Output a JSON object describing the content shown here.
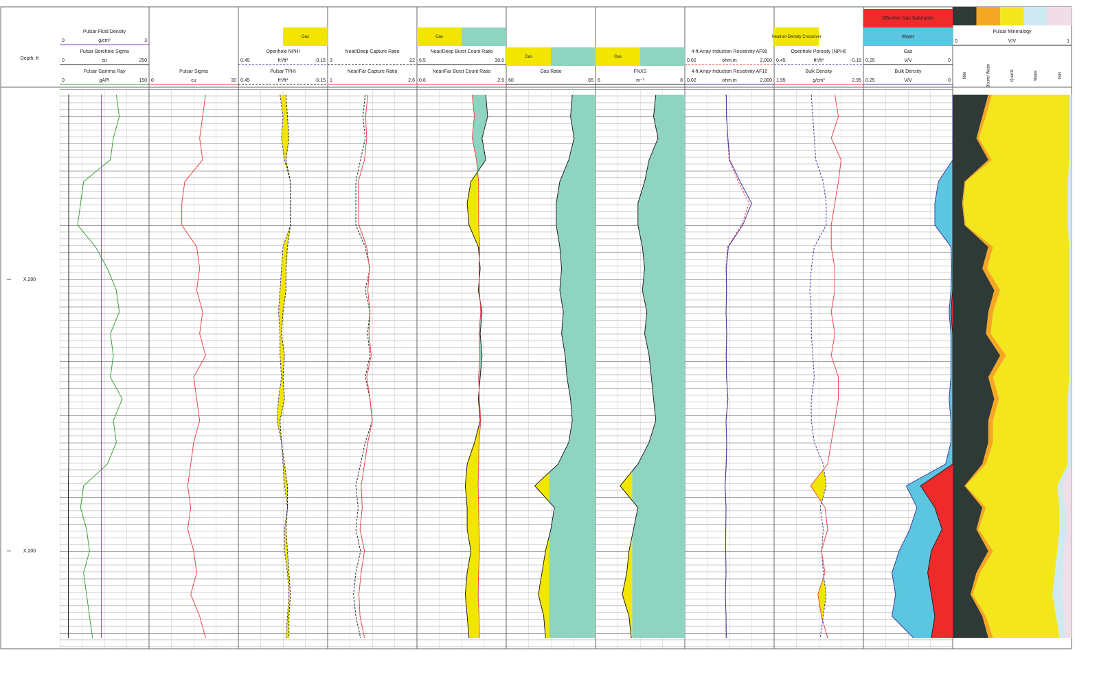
{
  "depth": {
    "title": "Depth, ft",
    "range": [
      130,
      336
    ],
    "ticks": [
      {
        "value": 200,
        "label": "X,200"
      },
      {
        "value": 300,
        "label": "X,300"
      }
    ],
    "samples": [
      132,
      140,
      148,
      156,
      164,
      172,
      180,
      188,
      196,
      204,
      212,
      220,
      228,
      236,
      244,
      252,
      260,
      268,
      276,
      284,
      292,
      300,
      308,
      316,
      324,
      332
    ]
  },
  "tracks": [
    {
      "fill": "none",
      "curves": [
        {
          "name": "Pulsar Fluid Density",
          "unit": "g/cm³",
          "scale": [
            0,
            3
          ],
          "color": "#8a3fb5",
          "values": [
            1.4,
            1.4,
            1.4,
            1.4,
            1.4,
            1.4,
            1.4,
            1.4,
            1.4,
            1.4,
            1.4,
            1.4,
            1.4,
            1.4,
            1.4,
            1.4,
            1.4,
            1.4,
            1.4,
            1.4,
            1.4,
            1.4,
            1.4,
            1.4,
            1.4,
            1.4
          ]
        },
        {
          "name": "Pulsar Borehole Sigma",
          "unit": "cu",
          "scale": [
            0,
            250
          ],
          "color": "#222222",
          "values": [
            25,
            25,
            25,
            25,
            25,
            25,
            25,
            25,
            25,
            25,
            25,
            25,
            25,
            25,
            25,
            25,
            25,
            25,
            24,
            24,
            24,
            24,
            24,
            24,
            24,
            24
          ]
        },
        {
          "name": "Pulsar Gamma Ray",
          "unit": "gAPI",
          "scale": [
            0,
            150
          ],
          "color": "#3aa03a",
          "values": [
            95,
            100,
            90,
            85,
            40,
            35,
            30,
            60,
            80,
            95,
            100,
            85,
            90,
            85,
            105,
            90,
            95,
            80,
            40,
            35,
            45,
            50,
            40,
            45,
            50,
            55
          ]
        }
      ]
    },
    {
      "fill": "none",
      "curves": [
        {
          "name": "Pulsar Sigma",
          "unit": "cu",
          "scale": [
            0,
            30
          ],
          "color": "#e8474b",
          "values": [
            19,
            18,
            17,
            18,
            12,
            11,
            11,
            16,
            17,
            16,
            18,
            17,
            19,
            15,
            16,
            17,
            15,
            14,
            13,
            14,
            13,
            15,
            16,
            14,
            17,
            19
          ]
        }
      ]
    },
    {
      "fill": "crossover",
      "fill_colors": [
        "#f2e600"
      ],
      "legend_position": "right",
      "legend": [
        {
          "label": "Gas",
          "color": "#f2e600"
        }
      ],
      "curves": [
        {
          "name": "Openhole NPHI",
          "unit": "ft³/ft³",
          "scale": [
            0.45,
            -0.15
          ],
          "color": "#3b3b9e",
          "dashed": true,
          "values": [
            0.17,
            0.15,
            0.16,
            0.14,
            0.1,
            0.1,
            0.1,
            0.15,
            0.16,
            0.17,
            0.18,
            0.17,
            0.17,
            0.16,
            0.18,
            0.19,
            0.16,
            0.15,
            0.14,
            0.12,
            0.14,
            0.14,
            0.12,
            0.11,
            0.12,
            0.13
          ]
        },
        {
          "name": "Pulsar TPHI",
          "unit": "ft³/ft³",
          "scale": [
            0.45,
            -0.15
          ],
          "color": "#222222",
          "dashed": true,
          "values": [
            0.13,
            0.12,
            0.11,
            0.13,
            0.1,
            0.1,
            0.1,
            0.12,
            0.13,
            0.13,
            0.15,
            0.16,
            0.14,
            0.15,
            0.14,
            0.17,
            0.16,
            0.14,
            0.12,
            0.12,
            0.13,
            0.12,
            0.11,
            0.1,
            0.11,
            0.11
          ]
        }
      ]
    },
    {
      "fill": "none",
      "curves": [
        {
          "name": "Near/Deep Capture Ratio",
          "unit": null,
          "scale": [
            3,
            22
          ],
          "color": "#222222",
          "dashed": true,
          "values": [
            11,
            10.5,
            11,
            10,
            9,
            9,
            9,
            11,
            12,
            11,
            12,
            11.5,
            12,
            11,
            12,
            12.5,
            11,
            10,
            9,
            9.5,
            9,
            10,
            9,
            8.5,
            9,
            10
          ]
        },
        {
          "name": "Near/Far Capture Ratio",
          "unit": null,
          "scale": [
            1,
            2.6
          ],
          "color": "#e8474b",
          "values": [
            1.72,
            1.68,
            1.7,
            1.66,
            1.55,
            1.55,
            1.56,
            1.7,
            1.75,
            1.72,
            1.76,
            1.74,
            1.78,
            1.7,
            1.76,
            1.8,
            1.72,
            1.66,
            1.6,
            1.62,
            1.58,
            1.66,
            1.6,
            1.56,
            1.58,
            1.66
          ]
        }
      ]
    },
    {
      "fill": "crossover",
      "fill_colors": [
        "#f2e600",
        "#8fd3c1"
      ],
      "legend_position": "left",
      "legend": [
        {
          "label": "Gas",
          "color": "#f2e600"
        },
        {
          "color": "#8fd3c1"
        }
      ],
      "curves": [
        {
          "name": "Near/Deep Burst Count Ratio",
          "unit": null,
          "scale": [
            6.5,
            30.5
          ],
          "color": "#222222",
          "values": [
            25,
            25.5,
            24,
            25,
            21,
            20,
            20.5,
            23,
            23.5,
            23,
            24,
            23.5,
            24,
            23.5,
            23,
            23.5,
            22,
            20,
            19.5,
            20,
            20,
            21,
            20,
            19.5,
            20,
            20.5
          ]
        },
        {
          "name": "Near/Far Burst Count Ratio",
          "unit": null,
          "scale": [
            0.8,
            2.9
          ],
          "color": "#e8474b",
          "values": [
            2.1,
            2.15,
            2.1,
            2.2,
            2.25,
            2.25,
            2.25,
            2.28,
            2.26,
            2.27,
            2.3,
            2.26,
            2.28,
            2.25,
            2.27,
            2.3,
            2.26,
            2.25,
            2.24,
            2.25,
            2.26,
            2.27,
            2.25,
            2.24,
            2.26,
            2.27
          ]
        }
      ]
    },
    {
      "fill": "cutoff",
      "cutoff": 62.4,
      "fill_colors": [
        "#f2e600",
        "#8fd3c1"
      ],
      "legend_position": "left",
      "legend": [
        {
          "label": "Gas",
          "color": "#f2e600"
        },
        {
          "color": "#8fd3c1"
        }
      ],
      "curves": [
        {
          "name": "Gas Ratio",
          "unit": null,
          "scale": [
            60,
            65
          ],
          "color": "#222222",
          "values": [
            63.7,
            63.6,
            63.8,
            63.5,
            63.0,
            62.8,
            62.8,
            63.0,
            63.1,
            63.0,
            63.2,
            63.1,
            63.3,
            63.4,
            63.6,
            63.7,
            63.5,
            62.9,
            61.6,
            62.7,
            62.5,
            62.2,
            62.0,
            61.8,
            62.1,
            62.2
          ]
        }
      ]
    },
    {
      "fill": "cutoff",
      "cutoff": 6.82,
      "fill_colors": [
        "#f2e600",
        "#8fd3c1"
      ],
      "legend_position": "left",
      "legend": [
        {
          "label": "Gas",
          "color": "#f2e600"
        },
        {
          "color": "#8fd3c1"
        }
      ],
      "curves": [
        {
          "name": "FNXS",
          "unit": "m⁻¹",
          "scale": [
            6,
            8
          ],
          "color": "#222222",
          "values": [
            7.35,
            7.3,
            7.4,
            7.2,
            7.1,
            6.95,
            6.95,
            7.05,
            7.1,
            7.05,
            7.15,
            7.1,
            7.2,
            7.25,
            7.3,
            7.35,
            7.2,
            6.95,
            6.55,
            6.95,
            6.85,
            6.75,
            6.7,
            6.6,
            6.75,
            6.8
          ]
        }
      ]
    },
    {
      "fill": "none",
      "curves": [
        {
          "name": "4-ft Array Induction Resistivity AF90",
          "unit": "ohm.m",
          "scale": [
            0.02,
            {
              "value": 2000,
              "label": "2,000"
            }
          ],
          "log": true,
          "color": "#e8474b",
          "dashed": true,
          "values": [
            4,
            4.5,
            5,
            6,
            20,
            80,
            30,
            5,
            4,
            4.5,
            4,
            4.5,
            4,
            4.5,
            5,
            4,
            4.5,
            4,
            3.5,
            4,
            4,
            3.8,
            4,
            3.8,
            4,
            4
          ]
        },
        {
          "name": "4-ft Array Induction Resistivity AF10",
          "unit": "ohm.m",
          "scale": [
            0.02,
            {
              "value": 2000,
              "label": "2,000"
            }
          ],
          "log": true,
          "color": "#3b3b9e",
          "values": [
            4.2,
            4.3,
            5.2,
            6.5,
            25,
            110,
            35,
            5.5,
            4.2,
            4.3,
            4.1,
            4.4,
            4.2,
            4.3,
            5.2,
            4.1,
            4.4,
            4.2,
            3.6,
            4.1,
            3.9,
            3.9,
            4.1,
            3.7,
            4.1,
            4.2
          ]
        }
      ]
    },
    {
      "fill": "crossover",
      "fill_colors": [
        null,
        "#f2e600"
      ],
      "legend_position": "left",
      "legend": [
        {
          "label": "Neutron-Density Crossover",
          "color": "#f2e600"
        }
      ],
      "curves": [
        {
          "name": "Openhole Porosity (NPHI)",
          "unit": "ft³/ft³",
          "scale": [
            0.45,
            -0.15
          ],
          "color": "#3b3b9e",
          "dashed": true,
          "values": [
            0.2,
            0.19,
            0.18,
            0.17,
            0.12,
            0.1,
            0.1,
            0.18,
            0.2,
            0.21,
            0.2,
            0.2,
            0.19,
            0.18,
            0.2,
            0.2,
            0.18,
            0.12,
            0.1,
            0.14,
            0.12,
            0.13,
            0.12,
            0.1,
            0.12,
            0.14
          ]
        },
        {
          "name": "Bulk Density",
          "unit": "g/cm³",
          "scale": [
            1.95,
            2.95
          ],
          "color": "#e8474b",
          "values": [
            2.63,
            2.67,
            2.59,
            2.7,
            2.67,
            2.63,
            2.59,
            2.59,
            2.63,
            2.63,
            2.59,
            2.63,
            2.59,
            2.67,
            2.67,
            2.63,
            2.59,
            2.55,
            2.36,
            2.52,
            2.55,
            2.48,
            2.52,
            2.44,
            2.48,
            2.55
          ]
        }
      ]
    },
    {
      "fill": "saturation",
      "fill_colors": [
        "#ee2a2a",
        "#5cc6e0"
      ],
      "legend": [
        {
          "label": "Effective Gas Saturation",
          "color": "#ee2a2a"
        },
        {
          "label": "Water",
          "color": "#5cc6e0"
        }
      ],
      "curves": [
        {
          "name": "Gas",
          "unit": "V/V",
          "scale": [
            0.25,
            0
          ],
          "color": "#222222",
          "values": [
            0,
            0,
            0,
            0,
            0,
            0,
            0,
            0,
            0,
            0,
            0.005,
            0,
            0,
            0,
            0,
            0,
            0,
            0,
            0.09,
            0.05,
            0.03,
            0.06,
            0.07,
            0.06,
            0.05,
            0.06
          ]
        },
        {
          "name": "Bulk Density",
          "unit": "V/V",
          "scale": [
            0.25,
            0
          ],
          "color": "#3b3b9e",
          "values": [
            0,
            0,
            0,
            0,
            0.04,
            0.05,
            0.05,
            0.005,
            0.003,
            0.005,
            0.01,
            0.005,
            0.005,
            0.005,
            0.01,
            0.005,
            0.005,
            0.02,
            0.13,
            0.1,
            0.12,
            0.15,
            0.17,
            0.16,
            0.17,
            0.11
          ]
        }
      ]
    }
  ],
  "mineralogy": {
    "title": "Pulsar Mineralogy",
    "unit": "V/V",
    "scale": [
      0,
      1
    ],
    "components": [
      {
        "name": "Illite",
        "color": "#2f3a36",
        "values": [
          0.3,
          0.25,
          0.2,
          0.3,
          0.1,
          0.08,
          0.1,
          0.3,
          0.25,
          0.35,
          0.3,
          0.28,
          0.4,
          0.3,
          0.35,
          0.3,
          0.3,
          0.25,
          0.1,
          0.25,
          0.2,
          0.3,
          0.2,
          0.15,
          0.25,
          0.3
        ]
      },
      {
        "name": "Bound Water",
        "color": "#f5a623",
        "values": [
          0.03,
          0.03,
          0.02,
          0.03,
          0.01,
          0.01,
          0.01,
          0.04,
          0.04,
          0.05,
          0.04,
          0.04,
          0.05,
          0.04,
          0.04,
          0.04,
          0.04,
          0.03,
          0.01,
          0.03,
          0.02,
          0.04,
          0.03,
          0.02,
          0.03,
          0.04
        ]
      },
      {
        "name": "Quartz",
        "color": "#f3e61c",
        "values": [
          0.65,
          0.7,
          0.76,
          0.65,
          0.86,
          0.88,
          0.86,
          0.64,
          0.69,
          0.58,
          0.64,
          0.66,
          0.53,
          0.64,
          0.58,
          0.63,
          0.63,
          0.69,
          0.77,
          0.62,
          0.68,
          0.54,
          0.63,
          0.67,
          0.59,
          0.56
        ]
      },
      {
        "name": "Water",
        "color": "#cfe9f2",
        "values": [
          0.02,
          0.02,
          0.02,
          0.02,
          0.03,
          0.03,
          0.03,
          0.02,
          0.02,
          0.02,
          0.02,
          0.02,
          0.02,
          0.02,
          0.03,
          0.03,
          0.03,
          0.03,
          0.04,
          0.05,
          0.06,
          0.06,
          0.07,
          0.08,
          0.07,
          0.05
        ]
      },
      {
        "name": "Gas",
        "color": "#f1dde8",
        "values": [
          0,
          0,
          0,
          0,
          0,
          0,
          0,
          0,
          0,
          0,
          0,
          0,
          0,
          0,
          0,
          0,
          0,
          0,
          0.08,
          0.05,
          0.04,
          0.06,
          0.07,
          0.08,
          0.06,
          0.05
        ]
      }
    ]
  }
}
